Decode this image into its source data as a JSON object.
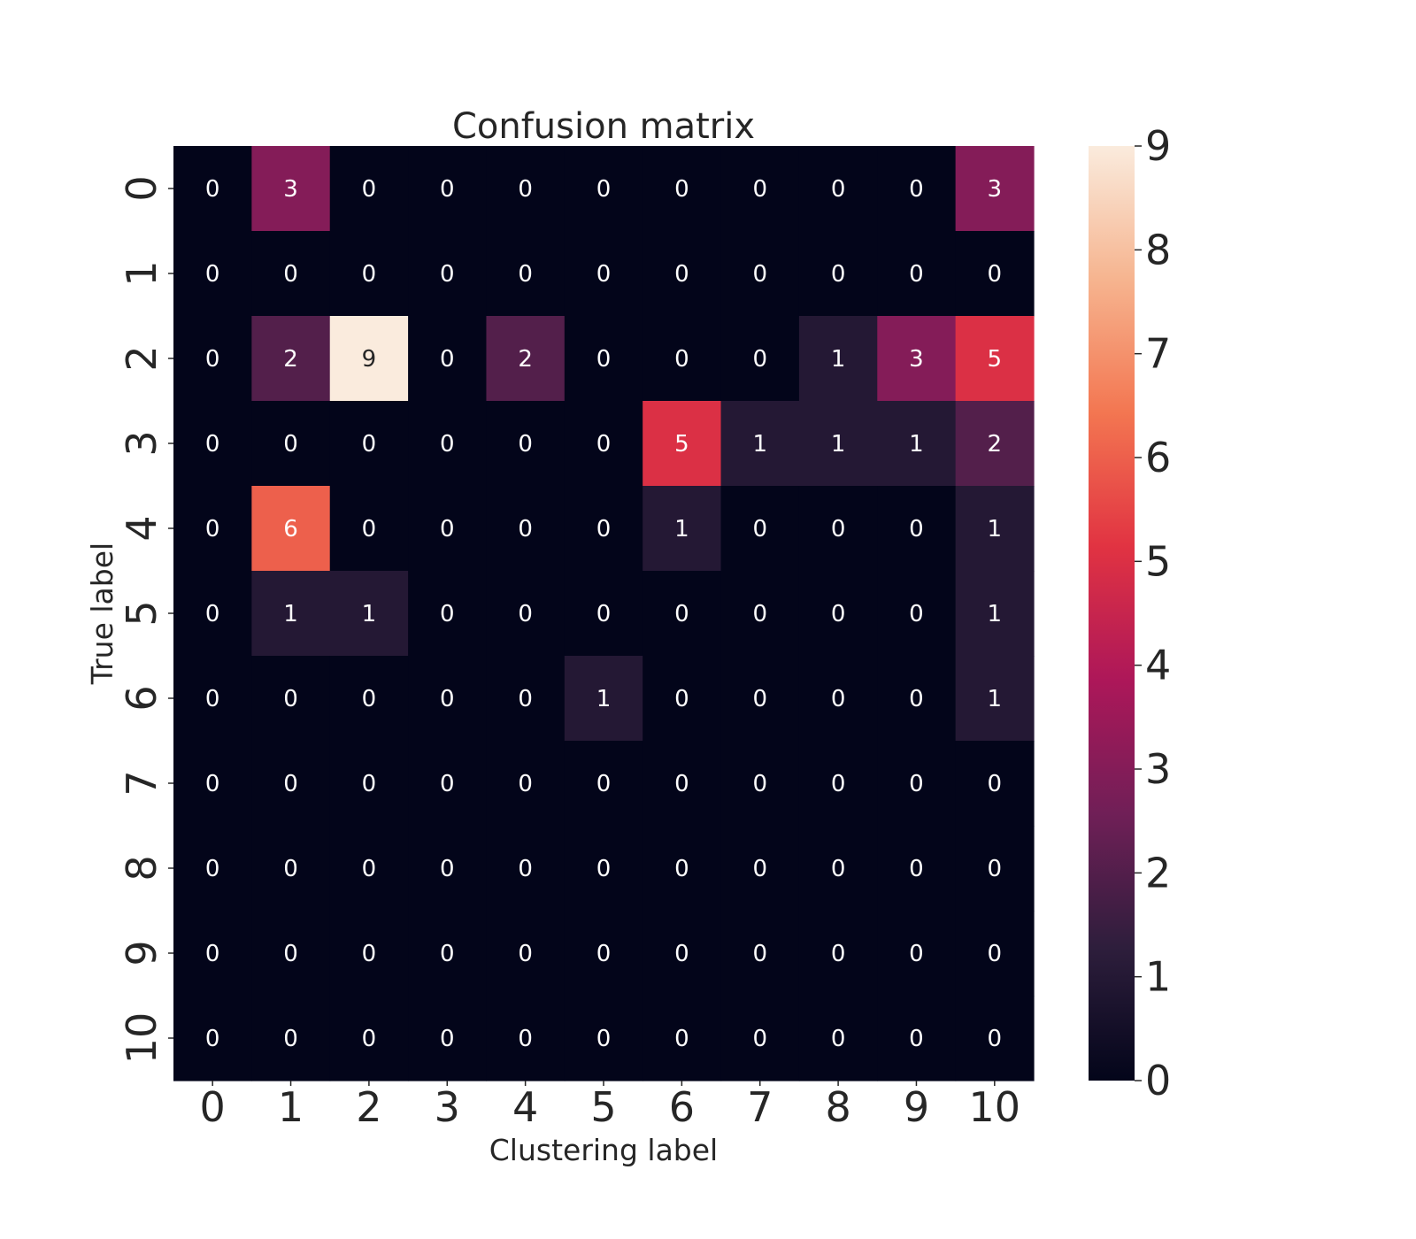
{
  "chart_data": {
    "type": "heatmap",
    "title": "Confusion matrix",
    "xlabel": "Clustering label",
    "ylabel": "True label",
    "x_categories": [
      "0",
      "1",
      "2",
      "3",
      "4",
      "5",
      "6",
      "7",
      "8",
      "9",
      "10"
    ],
    "y_categories": [
      "0",
      "1",
      "2",
      "3",
      "4",
      "5",
      "6",
      "7",
      "8",
      "9",
      "10"
    ],
    "values": [
      [
        0,
        3,
        0,
        0,
        0,
        0,
        0,
        0,
        0,
        0,
        3
      ],
      [
        0,
        0,
        0,
        0,
        0,
        0,
        0,
        0,
        0,
        0,
        0
      ],
      [
        0,
        2,
        9,
        0,
        2,
        0,
        0,
        0,
        1,
        3,
        5
      ],
      [
        0,
        0,
        0,
        0,
        0,
        0,
        5,
        1,
        1,
        1,
        2
      ],
      [
        0,
        6,
        0,
        0,
        0,
        0,
        1,
        0,
        0,
        0,
        1
      ],
      [
        0,
        1,
        1,
        0,
        0,
        0,
        0,
        0,
        0,
        0,
        1
      ],
      [
        0,
        0,
        0,
        0,
        0,
        1,
        0,
        0,
        0,
        0,
        1
      ],
      [
        0,
        0,
        0,
        0,
        0,
        0,
        0,
        0,
        0,
        0,
        0
      ],
      [
        0,
        0,
        0,
        0,
        0,
        0,
        0,
        0,
        0,
        0,
        0
      ],
      [
        0,
        0,
        0,
        0,
        0,
        0,
        0,
        0,
        0,
        0,
        0
      ],
      [
        0,
        0,
        0,
        0,
        0,
        0,
        0,
        0,
        0,
        0,
        0
      ]
    ],
    "colorbar": {
      "range": [
        0,
        9
      ],
      "ticks": [
        "0",
        "1",
        "2",
        "3",
        "4",
        "5",
        "6",
        "7",
        "8",
        "9"
      ],
      "colormap": "rocket",
      "color_stops": [
        "#03051a",
        "#2e1e3c",
        "#701f57",
        "#ad1759",
        "#e13342",
        "#f37651",
        "#f6b48f",
        "#faebdd"
      ]
    },
    "annotations": true
  }
}
